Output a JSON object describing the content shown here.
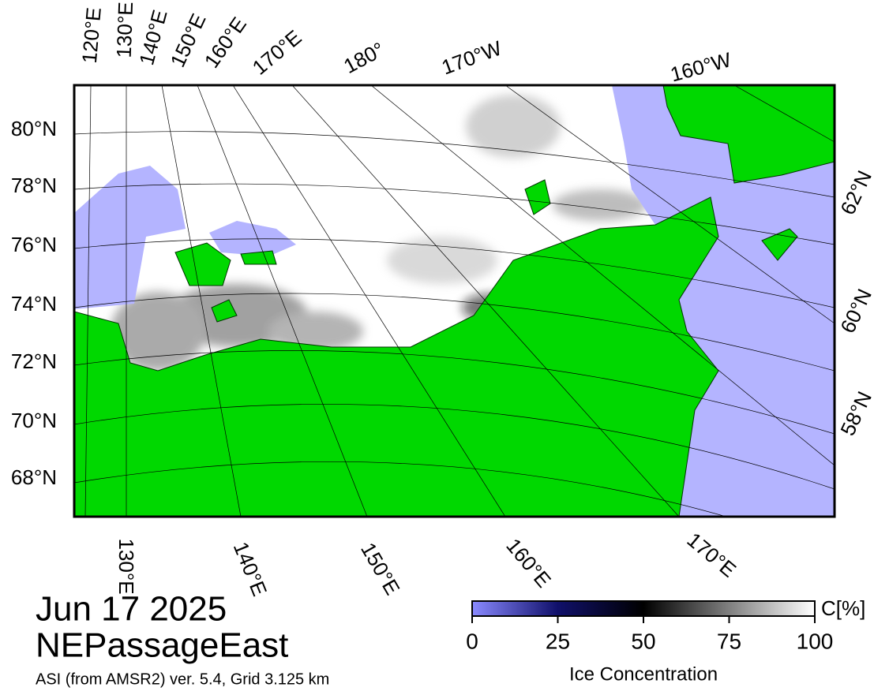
{
  "map": {
    "top_labels": [
      "120°E",
      "130°E",
      "140°E",
      "150°E",
      "160°E",
      "170°E",
      "180°",
      "170°W",
      "160°W"
    ],
    "left_labels": [
      "80°N",
      "78°N",
      "76°N",
      "74°N",
      "72°N",
      "70°N",
      "68°N"
    ],
    "right_labels": [
      "62°N",
      "60°N",
      "58°N"
    ],
    "bottom_labels": [
      "130°E",
      "140°E",
      "150°E",
      "160°E",
      "170°E"
    ]
  },
  "colorbar": {
    "ticks": [
      0,
      25,
      50,
      75,
      100
    ],
    "unit": "C[%]",
    "label": "Ice Concentration"
  },
  "footer": {
    "date": "Jun 17 2025",
    "region": "NEPassageEast",
    "source": "ASI (from AMSR2) ver. 5.4,  Grid 3.125 km"
  }
}
